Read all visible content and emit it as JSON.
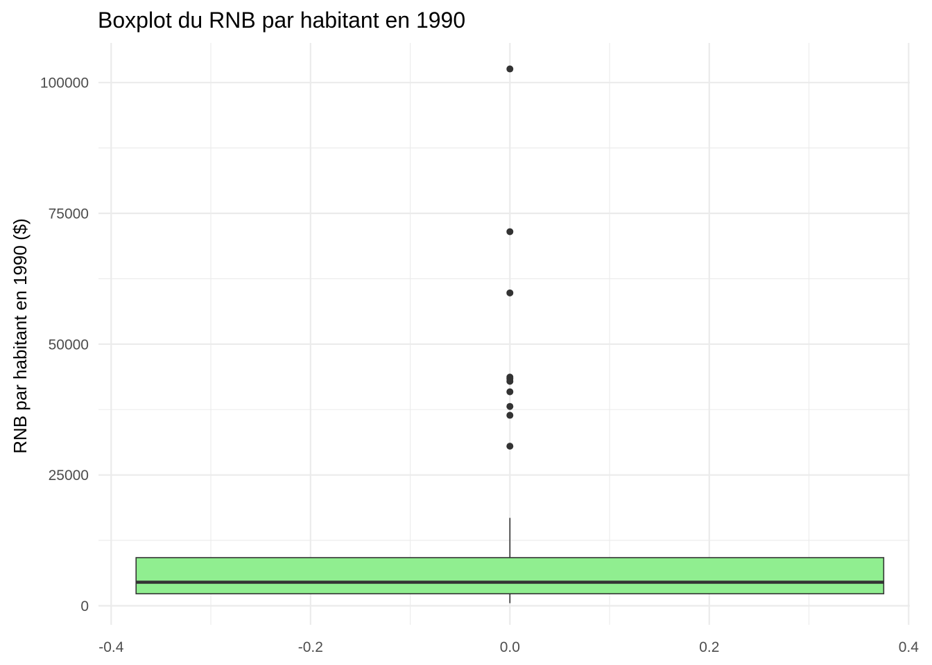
{
  "chart_data": {
    "type": "boxplot",
    "title": "Boxplot du RNB par habitant en 1990",
    "xlabel": "",
    "ylabel": "RNB par habitant en 1990 ($)",
    "xlim": [
      -0.4,
      0.4
    ],
    "ylim": [
      0,
      105000
    ],
    "x_ticks": [
      -0.4,
      -0.2,
      0.0,
      0.2,
      0.4
    ],
    "x_tick_labels": [
      "-0.4",
      "-0.2",
      "0.0",
      "0.2",
      "0.4"
    ],
    "y_ticks": [
      0,
      25000,
      50000,
      75000,
      100000
    ],
    "y_tick_labels": [
      "0",
      "25000",
      "50000",
      "75000",
      "100000"
    ],
    "grid": true,
    "box": {
      "x": 0.0,
      "x_from": -0.375,
      "x_to": 0.375,
      "q1": 2300,
      "median": 4500,
      "q3": 9200,
      "whisker_low": 500,
      "whisker_high": 16800
    },
    "outliers": [
      102600,
      71500,
      59800,
      43700,
      43400,
      42900,
      40900,
      38100,
      36400,
      30500
    ],
    "colors": {
      "box_fill": "#90ee90",
      "box_stroke": "#333333",
      "outlier": "#333333",
      "grid": "#ebebeb"
    }
  }
}
